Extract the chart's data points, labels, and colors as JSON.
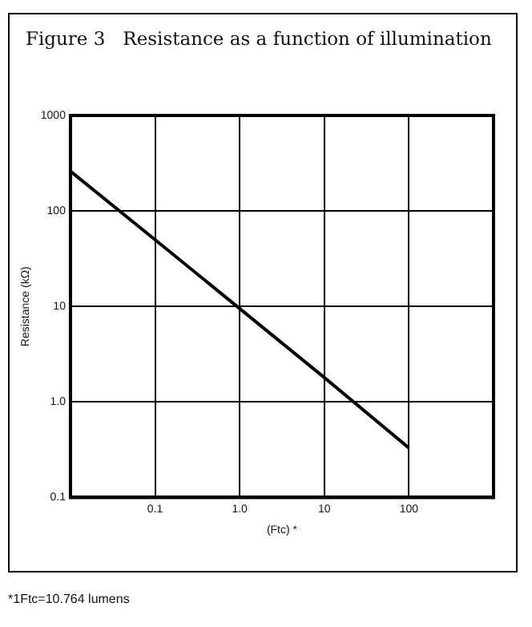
{
  "chart_data": {
    "type": "line",
    "title": "Figure 3   Resistance as a function of illumination",
    "xlabel": "(Ftc) *",
    "ylabel": "Resistance (kΩ)",
    "annotations": [
      "*1Ftc=10.764 lumens"
    ],
    "x": [
      0.01,
      0.1,
      1,
      10,
      100
    ],
    "series": [
      {
        "color": "#000000",
        "values": [
          260,
          50,
          9.5,
          1.8,
          0.33
        ]
      }
    ],
    "log": "xy",
    "xlim": [
      0.01,
      1000
    ],
    "ylim": [
      0.1,
      1000
    ],
    "xticks": [
      {
        "value": 0.01,
        "label": null
      },
      0.1,
      {
        "value": 1,
        "label": "1.0"
      },
      10,
      100,
      {
        "value": 1000,
        "label": null
      }
    ],
    "yticks": [
      {
        "value": 0.1,
        "label": "0.1"
      },
      {
        "value": 1,
        "label": "1.0"
      },
      10,
      100,
      1000
    ],
    "grid": true,
    "legend": false,
    "marker": "none",
    "line_style": "solid"
  }
}
